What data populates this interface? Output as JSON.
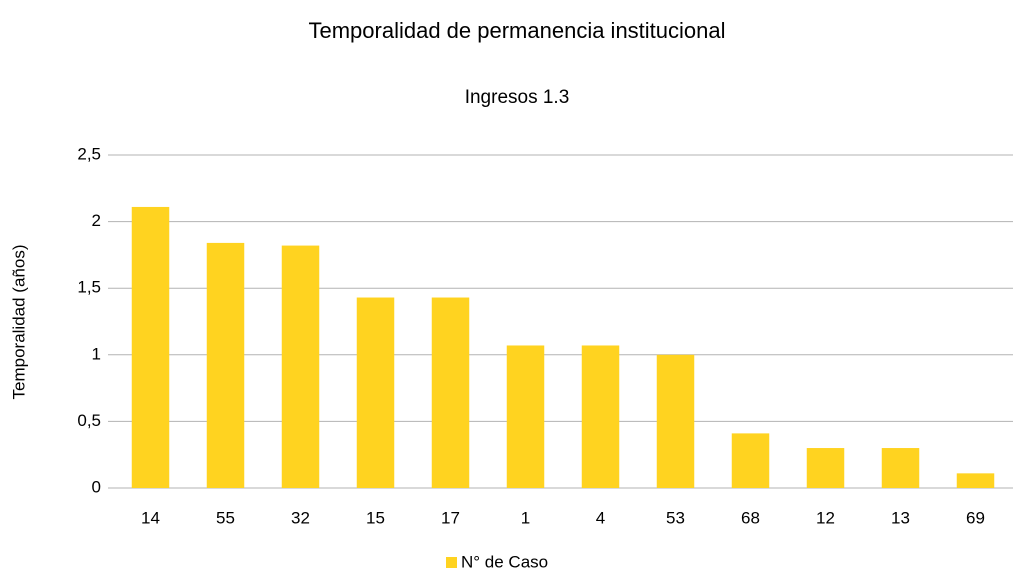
{
  "chart_data": {
    "type": "bar",
    "title": "Temporalidad de permanencia institucional",
    "subtitle": "Ingresos 1.3",
    "y_label": "Temporalidad (años)",
    "categories": [
      "14",
      "55",
      "32",
      "15",
      "17",
      "1",
      "4",
      "53",
      "68",
      "12",
      "13",
      "69"
    ],
    "series": [
      {
        "name": "N° de Caso",
        "color": "#ffd320",
        "values": [
          2.11,
          1.84,
          1.82,
          1.43,
          1.43,
          1.07,
          1.07,
          1.0,
          0.41,
          0.3,
          0.3,
          0.11
        ]
      }
    ],
    "ylim": [
      0,
      2.5
    ],
    "yticks": [
      0,
      {
        "value": 0.5,
        "label": "0,5"
      },
      1,
      {
        "value": 1.5,
        "label": "1,5"
      },
      2,
      {
        "value": 2.5,
        "label": "2,5"
      }
    ],
    "grid": true,
    "legend": "bottom"
  }
}
